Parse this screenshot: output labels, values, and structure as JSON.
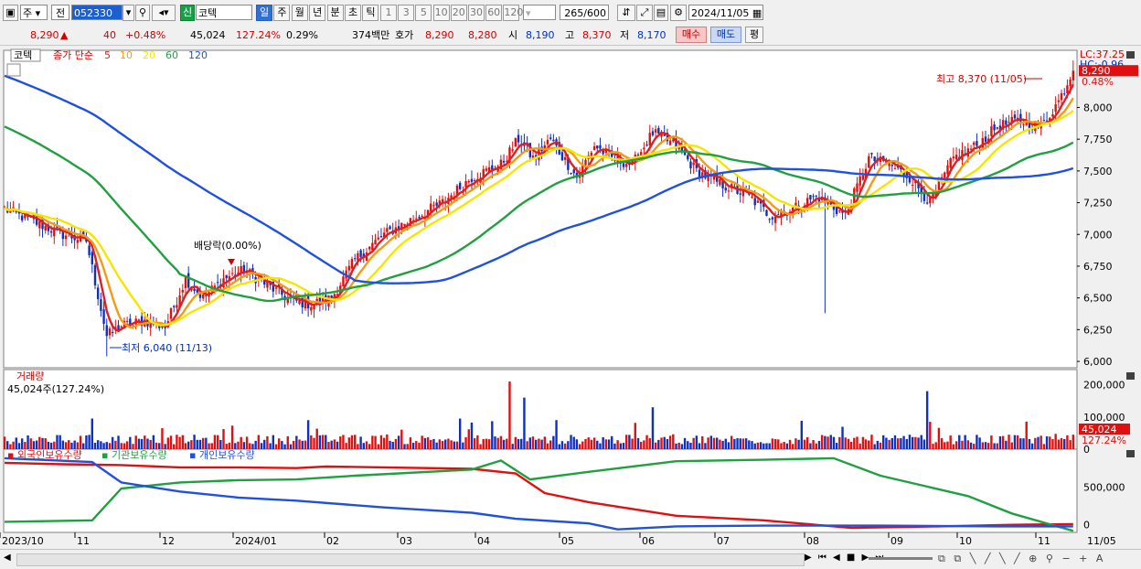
{
  "toolbar": {
    "market": "주",
    "prefix": "전",
    "code": "052330",
    "badge": "신",
    "name": "코텍",
    "periods": [
      "일",
      "주",
      "월",
      "년",
      "분",
      "초",
      "틱"
    ],
    "active_period": "일",
    "nums": [
      "1",
      "3",
      "5",
      "10",
      "20",
      "30",
      "60",
      "120"
    ],
    "count": "265",
    "total": "/600",
    "date": "2024/11/05"
  },
  "quote": {
    "price": "8,290",
    "change": "40",
    "pct": "+0.48%",
    "volume": "45,024",
    "vol_ratio": "127.24%",
    "turnover": "0.29%",
    "amount": "374백만",
    "hoga_label": "호가",
    "ask": "8,290",
    "bid": "8,280",
    "open_label": "시",
    "open": "8,190",
    "high_label": "고",
    "high": "8,370",
    "low_label": "저",
    "low": "8,170",
    "buy": "매수",
    "sell": "매도",
    "eval": "평"
  },
  "legend": {
    "name": "코텍",
    "ma_label": "종가 단순",
    "ma": [
      {
        "p": "5",
        "color": "#e02020"
      },
      {
        "p": "10",
        "color": "#f39c12"
      },
      {
        "p": "20",
        "color": "#f5e600"
      },
      {
        "p": "60",
        "color": "#20a040"
      },
      {
        "p": "120",
        "color": "#2050e0"
      }
    ],
    "lc": "LC:37.25",
    "hc": "HC:-0.96",
    "max_note": "최고 8,370 (11/05)",
    "min_note": "최저 6,040 (11/13)",
    "dividend": "배당락(0.00%)",
    "price_tag": "8,290",
    "pct_tag": "0.48%"
  },
  "volume_panel": {
    "title": "거래량",
    "value": "45,024주(127.24%)",
    "tag": "45,024",
    "tag2": "127.24%",
    "ticks": [
      "200,000",
      "100,000",
      "0"
    ]
  },
  "holding_panel": {
    "series": [
      "외국인보유수량",
      "기관보유수량",
      "개인보유수량"
    ],
    "ticks": [
      "500,000",
      "0"
    ]
  },
  "x_labels": [
    "2023/10",
    "11",
    "12",
    "2024/01",
    "02",
    "03",
    "04",
    "05",
    "06",
    "07",
    "08",
    "09",
    "10",
    "11",
    "11/05"
  ],
  "chart_data": {
    "type": "line",
    "title": "",
    "price_axis": {
      "ticks": [
        "8,000",
        "7,750",
        "7,500",
        "7,250",
        "7,000",
        "6,750",
        "6,500",
        "6,250",
        "6,000"
      ],
      "ylim": [
        5950,
        8450
      ]
    },
    "close_checkpoints": [
      [
        0,
        7200
      ],
      [
        10,
        7100
      ],
      [
        20,
        7000
      ],
      [
        28,
        6950
      ],
      [
        35,
        6200
      ],
      [
        40,
        6280
      ],
      [
        48,
        6320
      ],
      [
        55,
        6270
      ],
      [
        62,
        6650
      ],
      [
        68,
        6500
      ],
      [
        75,
        6650
      ],
      [
        82,
        6720
      ],
      [
        90,
        6600
      ],
      [
        98,
        6480
      ],
      [
        105,
        6450
      ],
      [
        112,
        6500
      ],
      [
        120,
        6800
      ],
      [
        130,
        7000
      ],
      [
        142,
        7150
      ],
      [
        150,
        7250
      ],
      [
        160,
        7450
      ],
      [
        170,
        7550
      ],
      [
        176,
        7750
      ],
      [
        181,
        7600
      ],
      [
        187,
        7750
      ],
      [
        196,
        7450
      ],
      [
        202,
        7700
      ],
      [
        208,
        7600
      ],
      [
        215,
        7550
      ],
      [
        222,
        7800
      ],
      [
        230,
        7700
      ],
      [
        237,
        7500
      ],
      [
        245,
        7400
      ],
      [
        255,
        7300
      ],
      [
        262,
        7150
      ],
      [
        270,
        7200
      ],
      [
        278,
        7300
      ],
      [
        288,
        7150
      ],
      [
        296,
        7600
      ],
      [
        303,
        7550
      ],
      [
        310,
        7450
      ],
      [
        317,
        7250
      ],
      [
        325,
        7600
      ],
      [
        333,
        7700
      ],
      [
        340,
        7850
      ],
      [
        348,
        7900
      ],
      [
        355,
        7850
      ],
      [
        361,
        8050
      ],
      [
        366,
        8290
      ]
    ],
    "ma_series": [
      {
        "name": "5",
        "color": "#e02020"
      },
      {
        "name": "10",
        "color": "#f39c12"
      },
      {
        "name": "20",
        "color": "#f5e600"
      },
      {
        "name": "60",
        "color": "#20a040"
      },
      {
        "name": "120",
        "color": "#2050e0"
      }
    ],
    "max": 8370,
    "min": 6040,
    "holdings_checkpoints": {
      "외국인보유수량": [
        [
          0,
          820000
        ],
        [
          20,
          800000
        ],
        [
          40,
          790000
        ],
        [
          60,
          760000
        ],
        [
          80,
          760000
        ],
        [
          100,
          750000
        ],
        [
          110,
          770000
        ],
        [
          130,
          760000
        ],
        [
          160,
          740000
        ],
        [
          175,
          680000
        ],
        [
          185,
          420000
        ],
        [
          200,
          300000
        ],
        [
          230,
          120000
        ],
        [
          260,
          60000
        ],
        [
          290,
          -40000
        ],
        [
          320,
          -20000
        ],
        [
          345,
          0
        ],
        [
          366,
          10000
        ]
      ],
      "기관보유수량": [
        [
          0,
          40000
        ],
        [
          30,
          60000
        ],
        [
          40,
          480000
        ],
        [
          60,
          560000
        ],
        [
          80,
          590000
        ],
        [
          100,
          600000
        ],
        [
          120,
          650000
        ],
        [
          160,
          730000
        ],
        [
          170,
          850000
        ],
        [
          180,
          600000
        ],
        [
          200,
          700000
        ],
        [
          230,
          840000
        ],
        [
          260,
          860000
        ],
        [
          284,
          880000
        ],
        [
          300,
          650000
        ],
        [
          330,
          380000
        ],
        [
          345,
          150000
        ],
        [
          366,
          -80000
        ]
      ],
      "개인보유수량": [
        [
          0,
          880000
        ],
        [
          30,
          830000
        ],
        [
          40,
          560000
        ],
        [
          60,
          440000
        ],
        [
          80,
          360000
        ],
        [
          100,
          320000
        ],
        [
          130,
          230000
        ],
        [
          160,
          160000
        ],
        [
          175,
          80000
        ],
        [
          200,
          20000
        ],
        [
          210,
          -60000
        ],
        [
          230,
          -20000
        ],
        [
          260,
          -10000
        ],
        [
          300,
          -10000
        ],
        [
          340,
          -20000
        ],
        [
          366,
          -20000
        ]
      ]
    }
  }
}
